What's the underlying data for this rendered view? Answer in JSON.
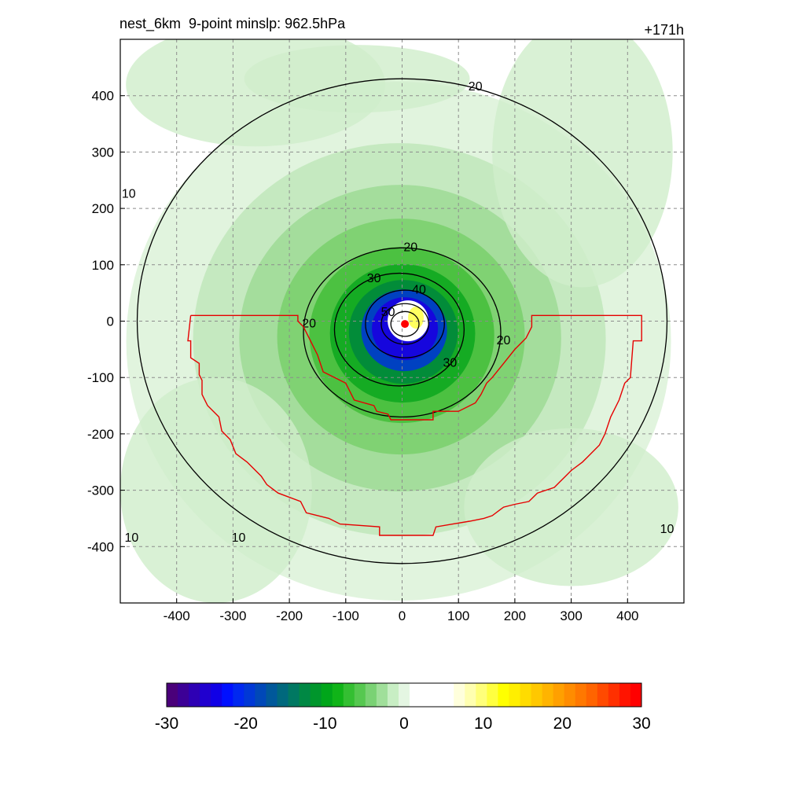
{
  "header": {
    "title": "nest_6km  9-point minslp: 962.5hPa",
    "forecast_hour": "+171h"
  },
  "chart_data": {
    "type": "heatmap",
    "title": "nest_6km  9-point minslp: 962.5hPa",
    "xlabel": "",
    "ylabel": "",
    "xlim": [
      -500,
      500
    ],
    "ylim": [
      -500,
      500
    ],
    "x_ticks": [
      -400,
      -300,
      -200,
      -100,
      0,
      100,
      200,
      300,
      400
    ],
    "y_ticks": [
      -400,
      -300,
      -200,
      -100,
      0,
      100,
      200,
      300,
      400
    ],
    "x_tick_labels": [
      "-400",
      "-300",
      "-200",
      "-100",
      "0",
      "100",
      "200",
      "300",
      "400"
    ],
    "y_tick_labels": [
      "-400",
      "-300",
      "-200",
      "-100",
      "0",
      "100",
      "200",
      "300",
      "400"
    ],
    "grid": true,
    "storm_center": [
      5,
      -5
    ],
    "contour_labels": [
      {
        "text": "10",
        "x": -485,
        "y": 225
      },
      {
        "text": "20",
        "x": 130,
        "y": 415
      },
      {
        "text": "20",
        "x": 15,
        "y": 130
      },
      {
        "text": "30",
        "x": -50,
        "y": 75
      },
      {
        "text": "40",
        "x": 30,
        "y": 55
      },
      {
        "text": "50",
        "x": -25,
        "y": 15
      },
      {
        "text": "20",
        "x": -165,
        "y": -5
      },
      {
        "text": "20",
        "x": 180,
        "y": -35
      },
      {
        "text": "30",
        "x": 85,
        "y": -75
      },
      {
        "text": "10",
        "x": -480,
        "y": -385
      },
      {
        "text": "10",
        "x": -290,
        "y": -385
      },
      {
        "text": "10",
        "x": 470,
        "y": -370
      }
    ],
    "contour_rings": [
      {
        "level": 10,
        "cx": 0,
        "cy": 0,
        "rx": 470,
        "ry": 430
      },
      {
        "level": 20,
        "cx": 0,
        "cy": -20,
        "rx": 175,
        "ry": 150
      },
      {
        "level": 30,
        "cx": -5,
        "cy": -15,
        "rx": 115,
        "ry": 100
      },
      {
        "level": 40,
        "cx": 5,
        "cy": -5,
        "rx": 70,
        "ry": 60
      },
      {
        "level": 50,
        "cx": 5,
        "cy": -5,
        "rx": 42,
        "ry": 36
      },
      {
        "level": 60,
        "cx": 5,
        "cy": -5,
        "rx": 25,
        "ry": 22
      }
    ],
    "red_outline": [
      [
        -375,
        10
      ],
      [
        -185,
        10
      ],
      [
        -185,
        0
      ],
      [
        -175,
        -10
      ],
      [
        -165,
        -30
      ],
      [
        -150,
        -60
      ],
      [
        -140,
        -90
      ],
      [
        -100,
        -110
      ],
      [
        -90,
        -130
      ],
      [
        -85,
        -140
      ],
      [
        -50,
        -150
      ],
      [
        -45,
        -160
      ],
      [
        -25,
        -165
      ],
      [
        -20,
        -175
      ],
      [
        55,
        -175
      ],
      [
        55,
        -160
      ],
      [
        100,
        -160
      ],
      [
        130,
        -145
      ],
      [
        140,
        -130
      ],
      [
        150,
        -110
      ],
      [
        160,
        -100
      ],
      [
        180,
        -75
      ],
      [
        200,
        -50
      ],
      [
        220,
        -30
      ],
      [
        230,
        -10
      ],
      [
        230,
        10
      ],
      [
        425,
        10
      ],
      [
        425,
        -35
      ],
      [
        410,
        -35
      ],
      [
        405,
        -100
      ],
      [
        395,
        -110
      ],
      [
        385,
        -140
      ],
      [
        370,
        -170
      ],
      [
        360,
        -200
      ],
      [
        350,
        -220
      ],
      [
        330,
        -240
      ],
      [
        320,
        -250
      ],
      [
        300,
        -265
      ],
      [
        290,
        -275
      ],
      [
        280,
        -285
      ],
      [
        270,
        -295
      ],
      [
        240,
        -305
      ],
      [
        225,
        -320
      ],
      [
        200,
        -325
      ],
      [
        180,
        -330
      ],
      [
        160,
        -345
      ],
      [
        145,
        -350
      ],
      [
        120,
        -355
      ],
      [
        90,
        -360
      ],
      [
        60,
        -365
      ],
      [
        55,
        -380
      ],
      [
        -40,
        -380
      ],
      [
        -40,
        -365
      ],
      [
        -110,
        -360
      ],
      [
        -130,
        -350
      ],
      [
        -170,
        -340
      ],
      [
        -180,
        -320
      ],
      [
        -220,
        -305
      ],
      [
        -240,
        -290
      ],
      [
        -250,
        -275
      ],
      [
        -275,
        -250
      ],
      [
        -295,
        -235
      ],
      [
        -305,
        -210
      ],
      [
        -320,
        -195
      ],
      [
        -325,
        -170
      ],
      [
        -345,
        -150
      ],
      [
        -355,
        -130
      ],
      [
        -355,
        -105
      ],
      [
        -360,
        -95
      ],
      [
        -360,
        -75
      ],
      [
        -375,
        -65
      ],
      [
        -375,
        -35
      ],
      [
        -380,
        -35
      ],
      [
        -375,
        10
      ]
    ],
    "colorbar": {
      "min": -30,
      "max": 30,
      "ticks": [
        -30,
        -20,
        -10,
        0,
        10,
        20,
        30
      ],
      "tick_labels": [
        "-30",
        "-20",
        "-10",
        "0",
        "10",
        "20",
        "30"
      ],
      "colors": [
        "#4a007a",
        "#3c0096",
        "#2e00b4",
        "#2000cf",
        "#1000e6",
        "#0010ff",
        "#0028f0",
        "#0038d6",
        "#0048b8",
        "#00589a",
        "#00687d",
        "#007862",
        "#008844",
        "#00962c",
        "#00a61a",
        "#10b418",
        "#34bf32",
        "#56c850",
        "#7ad274",
        "#a0df9a",
        "#c8eec4",
        "#e4f6e2",
        "#ffffff",
        "#ffffff",
        "#ffffff",
        "#ffffff",
        "#ffffdc",
        "#ffffb0",
        "#ffff7a",
        "#ffff40",
        "#ffff00",
        "#ffef00",
        "#ffdc00",
        "#ffc800",
        "#ffb400",
        "#ffa000",
        "#ff8c00",
        "#ff7800",
        "#ff6400",
        "#ff4a00",
        "#ff3000",
        "#ff1400",
        "#ff0000"
      ]
    }
  }
}
